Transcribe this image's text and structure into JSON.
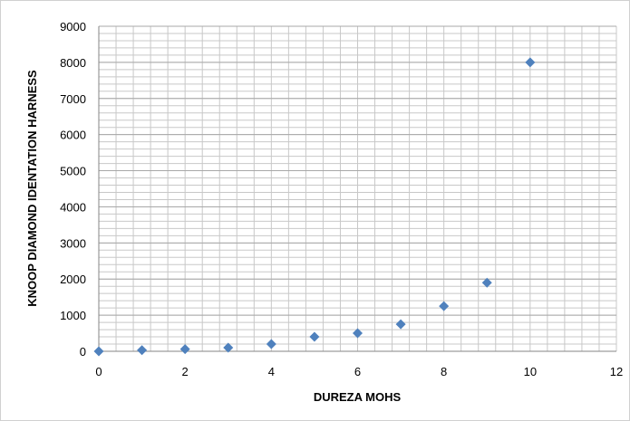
{
  "chart_data": {
    "type": "scatter",
    "xlabel": "DUREZA MOHS",
    "ylabel": "KNOOP DIAMOND IDENTATION HARNESS",
    "xlim": [
      0,
      12
    ],
    "ylim": [
      0,
      9000
    ],
    "x_ticks": [
      0,
      2,
      4,
      6,
      8,
      10,
      12
    ],
    "y_ticks": [
      0,
      1000,
      2000,
      3000,
      4000,
      5000,
      6000,
      7000,
      8000,
      9000
    ],
    "grid": true,
    "marker": "diamond",
    "marker_color": "#4f81bd",
    "gridline_color": "#c8c8c8",
    "series": [
      {
        "x": [
          0,
          1,
          2,
          3,
          4,
          5,
          6,
          7,
          8,
          9,
          10
        ],
        "y": [
          0,
          32,
          60,
          100,
          200,
          400,
          500,
          750,
          1250,
          1900,
          8000
        ]
      }
    ]
  }
}
